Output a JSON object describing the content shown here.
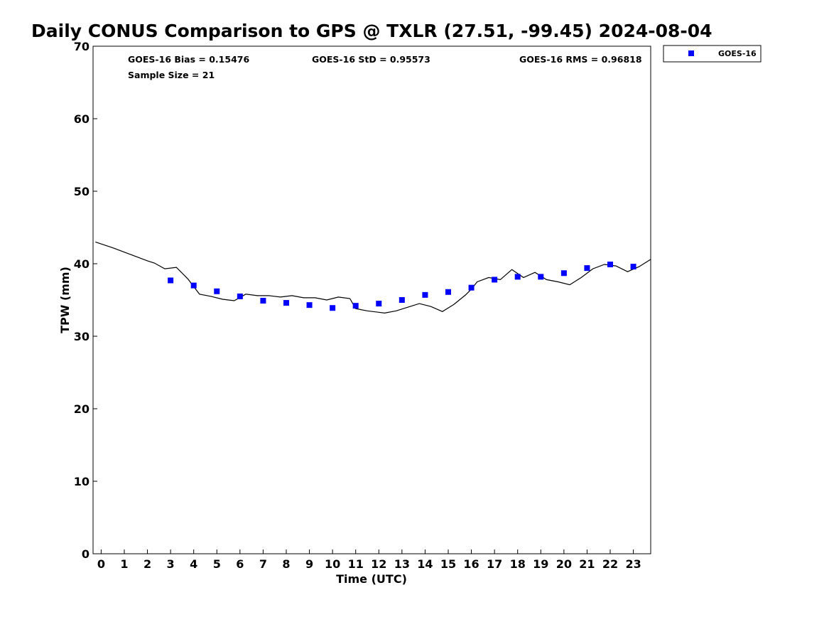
{
  "chart_data": {
    "type": "scatter",
    "title": "Daily CONUS Comparison to GPS @ TXLR (27.51, -99.45) 2024-08-04",
    "xlabel": "Time (UTC)",
    "ylabel": "TPW (mm)",
    "xlim": [
      -0.35,
      23.75
    ],
    "ylim": [
      0,
      70
    ],
    "x_ticks": [
      0,
      1,
      2,
      3,
      4,
      5,
      6,
      7,
      8,
      9,
      10,
      11,
      12,
      13,
      14,
      15,
      16,
      17,
      18,
      19,
      20,
      21,
      22,
      23
    ],
    "y_ticks": [
      0,
      10,
      20,
      30,
      40,
      50,
      60,
      70
    ],
    "grid": false,
    "legend_position": "top-right",
    "stats": {
      "bias": "GOES-16 Bias = 0.15476",
      "std": "GOES-16 StD = 0.95573",
      "rms": "GOES-16 RMS = 0.96818",
      "sample": "Sample Size = 21"
    },
    "series": [
      {
        "name": "GOES-16",
        "kind": "scatter",
        "marker": "square",
        "color": "#0000ff",
        "x": [
          3,
          4,
          5,
          6,
          7,
          8,
          9,
          10,
          11,
          12,
          13,
          14,
          15,
          16,
          17,
          18,
          19,
          20,
          21,
          22,
          23
        ],
        "y": [
          37.7,
          37.0,
          36.2,
          35.5,
          34.9,
          34.6,
          34.3,
          33.9,
          34.2,
          34.5,
          35.0,
          35.7,
          36.1,
          36.7,
          37.8,
          38.2,
          38.2,
          38.7,
          39.4,
          39.9,
          39.6
        ]
      },
      {
        "kind": "line",
        "color": "#000000",
        "x": [
          -0.25,
          0.5,
          1.0,
          1.5,
          2.0,
          2.3,
          2.75,
          3.25,
          3.75,
          4.25,
          4.75,
          5.25,
          5.75,
          6.25,
          6.75,
          7.25,
          7.75,
          8.25,
          8.75,
          9.25,
          9.75,
          10.25,
          10.75,
          11.0,
          11.5,
          12.0,
          12.25,
          12.75,
          13.25,
          13.75,
          14.25,
          14.75,
          15.25,
          15.75,
          16.0,
          16.25,
          16.75,
          17.25,
          17.75,
          18.25,
          18.75,
          19.25,
          19.75,
          20.25,
          20.75,
          21.25,
          21.75,
          22.25,
          22.75,
          23.25,
          23.75
        ],
        "y": [
          43.0,
          42.2,
          41.6,
          41.0,
          40.4,
          40.1,
          39.3,
          39.5,
          37.9,
          35.8,
          35.5,
          35.1,
          34.9,
          35.8,
          35.6,
          35.6,
          35.4,
          35.6,
          35.3,
          35.3,
          35.0,
          35.4,
          35.2,
          33.8,
          33.5,
          33.3,
          33.2,
          33.5,
          34.0,
          34.5,
          34.1,
          33.4,
          34.4,
          35.7,
          36.5,
          37.5,
          38.1,
          37.8,
          39.2,
          38.1,
          38.8,
          37.8,
          37.5,
          37.1,
          38.1,
          39.3,
          39.9,
          39.7,
          38.9,
          39.6,
          40.6
        ]
      }
    ]
  }
}
